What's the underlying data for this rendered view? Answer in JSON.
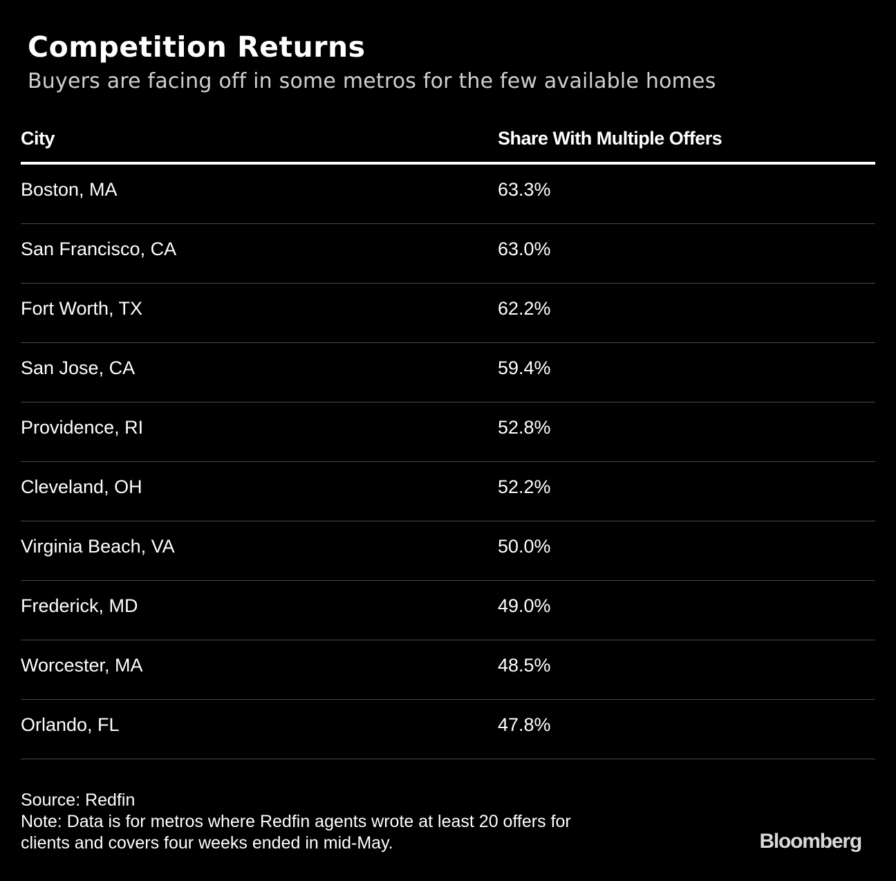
{
  "title": "Competition Returns",
  "subtitle": "Buyers are facing off in some metros for the few available homes",
  "chart_data": {
    "type": "table",
    "columns": [
      "City",
      "Share With Multiple Offers"
    ],
    "rows": [
      [
        "Boston, MA",
        "63.3%"
      ],
      [
        "San Francisco, CA",
        "63.0%"
      ],
      [
        "Fort Worth, TX",
        "62.2%"
      ],
      [
        "San Jose, CA",
        "59.4%"
      ],
      [
        "Providence, RI",
        "52.8%"
      ],
      [
        "Cleveland, OH",
        "52.2%"
      ],
      [
        "Virginia Beach, VA",
        "50.0%"
      ],
      [
        "Frederick, MD",
        "49.0%"
      ],
      [
        "Worcester, MA",
        "48.5%"
      ],
      [
        "Orlando, FL",
        "47.8%"
      ]
    ]
  },
  "footer": {
    "source": "Source: Redfin",
    "note_line1": "Note: Data is for metros where Redfin agents wrote at least 20 offers for",
    "note_line2": "clients and covers four weeks ended in mid-May."
  },
  "logo": "Bloomberg",
  "colors": {
    "background": "#000000",
    "text": "#ffffff",
    "subtitle": "#cfcfcf",
    "divider": "#4a4a4a"
  }
}
